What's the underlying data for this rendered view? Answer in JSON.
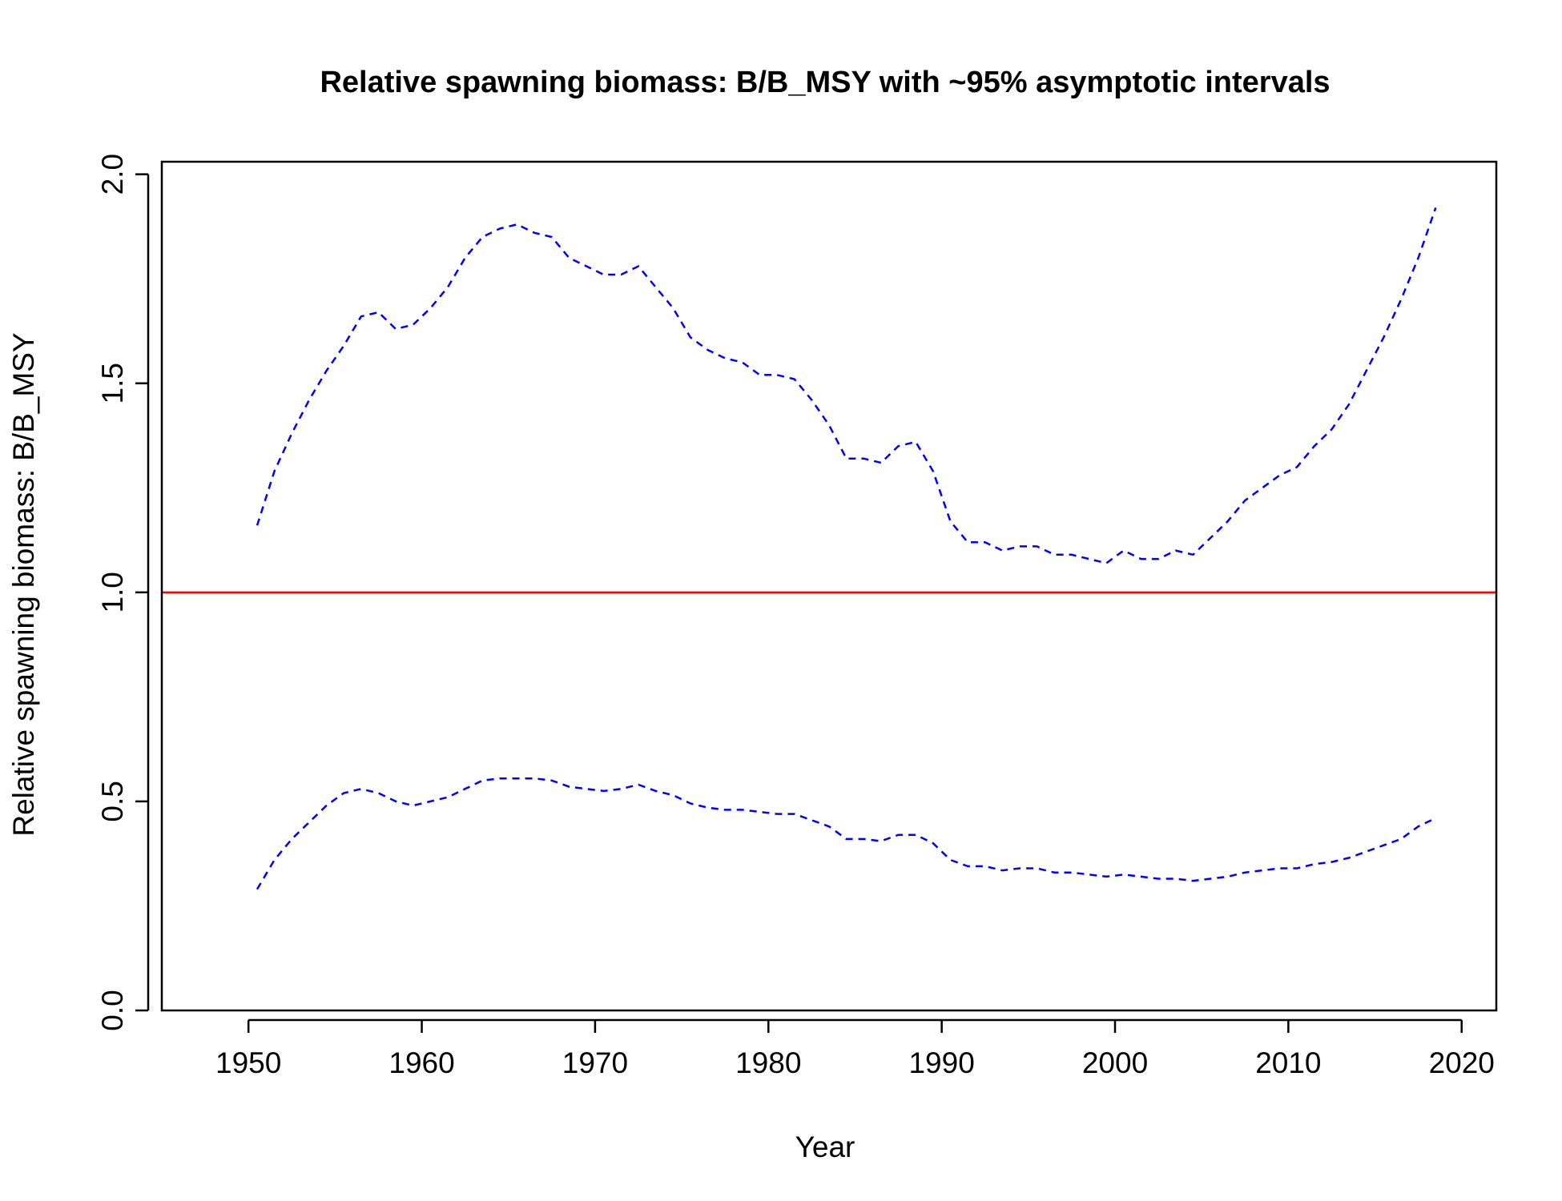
{
  "chart_data": {
    "type": "line",
    "title": "Relative spawning biomass: B/B_MSY with ~95% asymptotic intervals",
    "xlabel": "Year",
    "ylabel": "Relative spawning biomass: B/B_MSY",
    "xlim": [
      1945,
      2022
    ],
    "ylim": [
      0,
      2.03
    ],
    "x_ticks": [
      1950,
      1960,
      1970,
      1980,
      1990,
      2000,
      2010,
      2020
    ],
    "y_ticks": [
      0.0,
      0.5,
      1.0,
      1.5,
      2.0
    ],
    "x_tick_labels": [
      "1950",
      "1960",
      "1970",
      "1980",
      "1990",
      "2000",
      "2010",
      "2020"
    ],
    "y_tick_labels": [
      "0.0",
      "0.5",
      "1.0",
      "1.5",
      "2.0"
    ],
    "grid": false,
    "reference_line": {
      "y": 1.0,
      "color": "#ff0000"
    },
    "series_color": "#0000ff",
    "x": [
      1950.5,
      1951.5,
      1952.5,
      1953.5,
      1954.5,
      1955.5,
      1956.5,
      1957.5,
      1958.5,
      1959.5,
      1960.5,
      1961.5,
      1962.5,
      1963.5,
      1964.5,
      1965.5,
      1966.5,
      1967.5,
      1968.5,
      1969.5,
      1970.5,
      1971.5,
      1972.5,
      1973.5,
      1974.5,
      1975.5,
      1976.5,
      1977.5,
      1978.5,
      1979.5,
      1980.5,
      1981.5,
      1982.5,
      1983.5,
      1984.5,
      1985.5,
      1986.5,
      1987.5,
      1988.5,
      1989.5,
      1990.5,
      1991.5,
      1992.5,
      1993.5,
      1994.5,
      1995.5,
      1996.5,
      1997.5,
      1998.5,
      1999.5,
      2000.5,
      2001.5,
      2002.5,
      2003.5,
      2004.5,
      2005.5,
      2006.5,
      2007.5,
      2008.5,
      2009.5,
      2010.5,
      2011.5,
      2012.5,
      2013.5,
      2014.5,
      2015.5,
      2016.5,
      2017.5,
      2018.5
    ],
    "series": [
      {
        "values": [
          1.16,
          1.29,
          1.38,
          1.46,
          1.53,
          1.59,
          1.66,
          1.67,
          1.63,
          1.64,
          1.68,
          1.73,
          1.8,
          1.85,
          1.87,
          1.88,
          1.86,
          1.85,
          1.8,
          1.78,
          1.76,
          1.76,
          1.78,
          1.73,
          1.68,
          1.61,
          1.58,
          1.56,
          1.55,
          1.52,
          1.52,
          1.51,
          1.46,
          1.4,
          1.32,
          1.32,
          1.31,
          1.35,
          1.36,
          1.29,
          1.17,
          1.12,
          1.12,
          1.1,
          1.11,
          1.11,
          1.09,
          1.09,
          1.08,
          1.07,
          1.1,
          1.08,
          1.08,
          1.1,
          1.09,
          1.13,
          1.17,
          1.22,
          1.25,
          1.28,
          1.3,
          1.35,
          1.39,
          1.45,
          1.53,
          1.61,
          1.7,
          1.8,
          1.92
        ]
      },
      {
        "values": [
          0.29,
          0.36,
          0.41,
          0.45,
          0.49,
          0.52,
          0.53,
          0.52,
          0.5,
          0.49,
          0.5,
          0.51,
          0.53,
          0.55,
          0.555,
          0.555,
          0.555,
          0.55,
          0.535,
          0.53,
          0.525,
          0.53,
          0.54,
          0.525,
          0.515,
          0.495,
          0.485,
          0.48,
          0.48,
          0.475,
          0.47,
          0.47,
          0.455,
          0.44,
          0.41,
          0.41,
          0.405,
          0.42,
          0.42,
          0.4,
          0.36,
          0.345,
          0.345,
          0.335,
          0.34,
          0.34,
          0.33,
          0.33,
          0.325,
          0.32,
          0.325,
          0.32,
          0.315,
          0.315,
          0.31,
          0.315,
          0.32,
          0.33,
          0.335,
          0.34,
          0.34,
          0.35,
          0.355,
          0.365,
          0.38,
          0.395,
          0.41,
          0.44,
          0.46
        ]
      }
    ]
  }
}
